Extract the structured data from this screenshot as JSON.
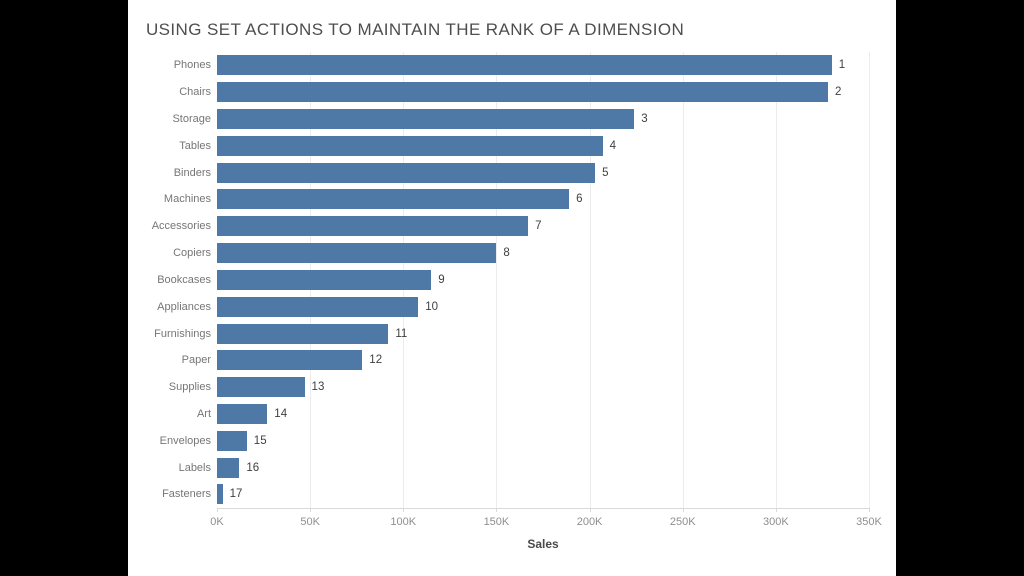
{
  "window": {
    "letterbox_color": "#000000",
    "canvas_color": "#ffffff"
  },
  "colors": {
    "bar": "#4e79a7",
    "title_text": "#4e4e4e",
    "category_text": "#767676",
    "rank_text": "#3f3f3f",
    "tick_text": "#8f8f8f",
    "gridline": "#ececec",
    "axis_line": "#d9d9d9"
  },
  "chart_data": {
    "type": "bar",
    "orientation": "horizontal",
    "title": "USING SET ACTIONS TO MAINTAIN THE RANK OF A DIMENSION",
    "xlabel": "Sales",
    "categories": [
      "Phones",
      "Chairs",
      "Storage",
      "Tables",
      "Binders",
      "Machines",
      "Accessories",
      "Copiers",
      "Bookcases",
      "Appliances",
      "Furnishings",
      "Paper",
      "Supplies",
      "Art",
      "Envelopes",
      "Labels",
      "Fasteners"
    ],
    "values": [
      330000,
      328000,
      224000,
      207000,
      203000,
      189000,
      167000,
      150000,
      115000,
      108000,
      92000,
      78000,
      47000,
      27000,
      16000,
      12000,
      3000
    ],
    "bar_labels": [
      "1",
      "2",
      "3",
      "4",
      "5",
      "6",
      "7",
      "8",
      "9",
      "10",
      "11",
      "12",
      "13",
      "14",
      "15",
      "16",
      "17"
    ],
    "x_ticks": [
      "0K",
      "50K",
      "100K",
      "150K",
      "200K",
      "250K",
      "300K",
      "350K"
    ],
    "xlim": [
      0,
      350000
    ],
    "grid": "vertical-only",
    "legend": "none",
    "bar_color": "#4e79a7"
  }
}
